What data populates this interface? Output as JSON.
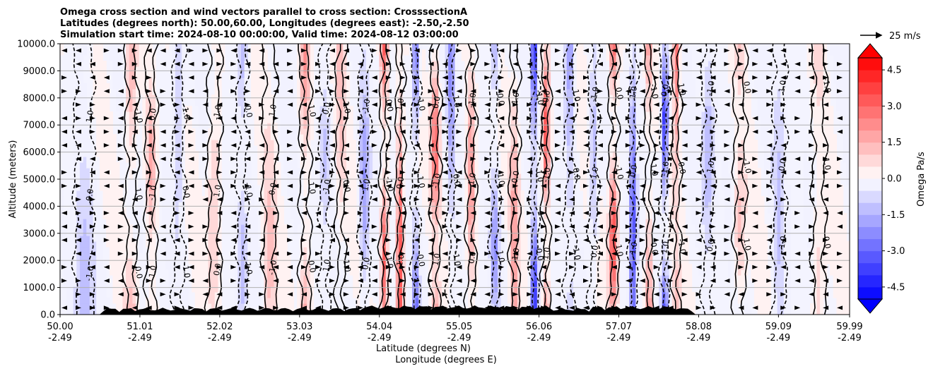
{
  "chart_data": {
    "type": "contourf",
    "title": [
      "Omega cross section and wind vectors parallel to cross section: CrosssectionA",
      "Latitudes (degrees north): 50.00,60.00, Longitudes (degrees east): -2.50,-2.50",
      "Simulation start time: 2024-08-10 00:00:00, Valid time: 2024-08-12 03:00:00"
    ],
    "ylabel": "Altitude (meters)",
    "xlabel_lat": "Latitude (degrees N)",
    "xlabel_lon": "Longitude (degrees E)",
    "xlim": [
      50.0,
      59.99
    ],
    "ylim": [
      0,
      10000
    ],
    "x_ticks": [
      {
        "lat": "50.00",
        "lon": "-2.49",
        "v": 50.0
      },
      {
        "lat": "51.01",
        "lon": "-2.49",
        "v": 51.01
      },
      {
        "lat": "52.02",
        "lon": "-2.49",
        "v": 52.02
      },
      {
        "lat": "53.03",
        "lon": "-2.49",
        "v": 53.03
      },
      {
        "lat": "54.04",
        "lon": "-2.49",
        "v": 54.04
      },
      {
        "lat": "55.05",
        "lon": "-2.49",
        "v": 55.05
      },
      {
        "lat": "56.06",
        "lon": "-2.49",
        "v": 56.06
      },
      {
        "lat": "57.07",
        "lon": "-2.49",
        "v": 57.07
      },
      {
        "lat": "58.08",
        "lon": "-2.49",
        "v": 58.08
      },
      {
        "lat": "59.09",
        "lon": "-2.49",
        "v": 59.09
      },
      {
        "lat": "59.99",
        "lon": "-2.49",
        "v": 59.99
      }
    ],
    "y_ticks": [
      {
        "label": "0.0",
        "v": 0
      },
      {
        "label": "1000.0",
        "v": 1000
      },
      {
        "label": "2000.0",
        "v": 2000
      },
      {
        "label": "3000.0",
        "v": 3000
      },
      {
        "label": "4000.0",
        "v": 4000
      },
      {
        "label": "5000.0",
        "v": 5000
      },
      {
        "label": "6000.0",
        "v": 6000
      },
      {
        "label": "7000.0",
        "v": 7000
      },
      {
        "label": "8000.0",
        "v": 8000
      },
      {
        "label": "9000.0",
        "v": 9000
      },
      {
        "label": "10000.0",
        "v": 10000
      }
    ],
    "grid": "horizontal",
    "colorbar": {
      "label": "Omega Pa/s",
      "vmin": -5.0,
      "vmax": 5.0,
      "ticks": [
        "-4.5",
        "-3.0",
        "-1.5",
        "0.0",
        "1.5",
        "3.0",
        "4.5"
      ],
      "tick_values": [
        -4.5,
        -3.0,
        -1.5,
        0.0,
        1.5,
        3.0,
        4.5
      ],
      "extend": "both",
      "colormap": "bwr",
      "low_color": "#0000ff",
      "high_color": "#ff0000"
    },
    "quiver_key": {
      "label": "25 m/s"
    },
    "contour_labels": [
      "-1.0",
      "0.0",
      "1.0"
    ],
    "omega_columns": [
      {
        "lat": 50.3,
        "w": 0.12,
        "amp": -1.3
      },
      {
        "lat": 50.9,
        "w": 0.07,
        "amp": 1.6
      },
      {
        "lat": 51.15,
        "w": 0.06,
        "amp": 1.8
      },
      {
        "lat": 51.5,
        "w": 0.07,
        "amp": -1.2
      },
      {
        "lat": 51.95,
        "w": 0.08,
        "amp": 1.2
      },
      {
        "lat": 52.3,
        "w": 0.06,
        "amp": -1.3
      },
      {
        "lat": 52.65,
        "w": 0.08,
        "amp": 1.1
      },
      {
        "lat": 53.1,
        "w": 0.06,
        "amp": 2.0
      },
      {
        "lat": 53.35,
        "w": 0.06,
        "amp": -1.0
      },
      {
        "lat": 53.55,
        "w": 0.05,
        "amp": 1.2
      },
      {
        "lat": 53.85,
        "w": 0.06,
        "amp": -2.0
      },
      {
        "lat": 54.1,
        "w": 0.04,
        "amp": 3.2
      },
      {
        "lat": 54.3,
        "w": 0.04,
        "amp": 3.5
      },
      {
        "lat": 54.5,
        "w": 0.04,
        "amp": -3.0
      },
      {
        "lat": 54.75,
        "w": 0.05,
        "amp": 3.0
      },
      {
        "lat": 54.95,
        "w": 0.04,
        "amp": -2.6
      },
      {
        "lat": 55.2,
        "w": 0.05,
        "amp": 2.2
      },
      {
        "lat": 55.5,
        "w": 0.05,
        "amp": -2.0
      },
      {
        "lat": 55.75,
        "w": 0.05,
        "amp": 1.8
      },
      {
        "lat": 56.0,
        "w": 0.04,
        "amp": -4.8
      },
      {
        "lat": 56.15,
        "w": 0.04,
        "amp": 3.4
      },
      {
        "lat": 56.45,
        "w": 0.06,
        "amp": -2.2
      },
      {
        "lat": 56.75,
        "w": 0.05,
        "amp": -1.5
      },
      {
        "lat": 57.0,
        "w": 0.05,
        "amp": 3.8
      },
      {
        "lat": 57.25,
        "w": 0.04,
        "amp": -3.6
      },
      {
        "lat": 57.45,
        "w": 0.04,
        "amp": 2.2
      },
      {
        "lat": 57.65,
        "w": 0.04,
        "amp": -4.2
      },
      {
        "lat": 57.8,
        "w": 0.04,
        "amp": 3.6
      },
      {
        "lat": 58.2,
        "w": 0.07,
        "amp": -1.4
      },
      {
        "lat": 58.6,
        "w": 0.07,
        "amp": 1.2
      },
      {
        "lat": 59.1,
        "w": 0.08,
        "amp": -1.0
      },
      {
        "lat": 59.6,
        "w": 0.08,
        "amp": 0.9
      }
    ]
  }
}
